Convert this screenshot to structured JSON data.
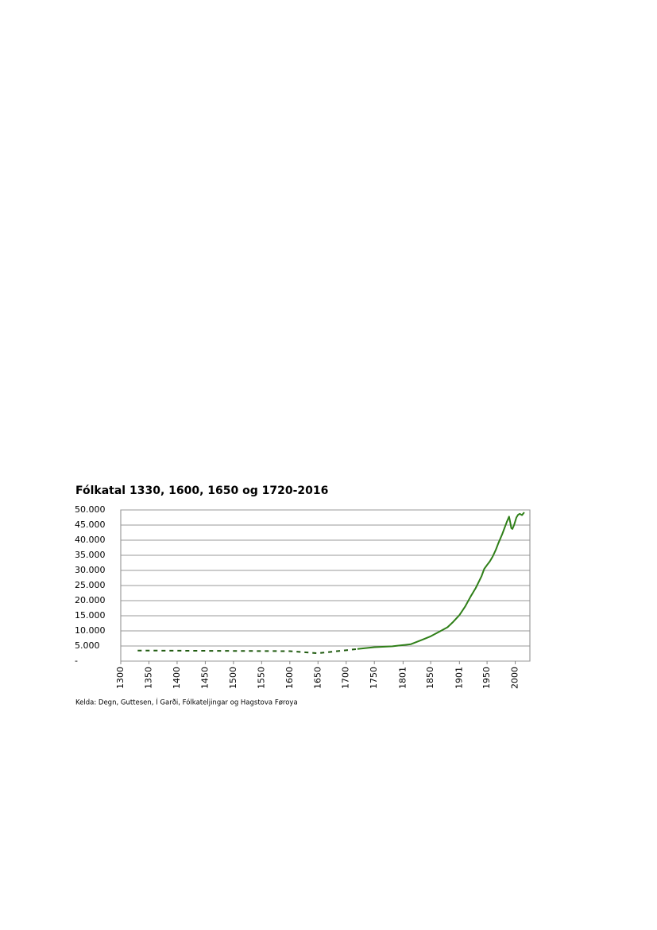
{
  "chart_data": {
    "type": "line",
    "title": "Fólkatal 1330, 1600, 1650 og 1720-2016",
    "source": "Kelda: Degn, Guttesen, Í Garði, Fólkateljingar og Hagstova Føroya",
    "xlim": [
      1300,
      2026
    ],
    "xticks": [
      1300,
      1350,
      1400,
      1450,
      1500,
      1550,
      1600,
      1650,
      1700,
      1750,
      1801,
      1850,
      1901,
      1950,
      2000
    ],
    "ylim": [
      0,
      50000
    ],
    "yticks": [
      {
        "value": 0,
        "label": "-"
      },
      {
        "value": 5000,
        "label": "5.000"
      },
      {
        "value": 10000,
        "label": "10.000"
      },
      {
        "value": 15000,
        "label": "15.000"
      },
      {
        "value": 20000,
        "label": "20.000"
      },
      {
        "value": 25000,
        "label": "25.000"
      },
      {
        "value": 30000,
        "label": "30.000"
      },
      {
        "value": 35000,
        "label": "35.000"
      },
      {
        "value": 40000,
        "label": "40.000"
      },
      {
        "value": 45000,
        "label": "45.000"
      },
      {
        "value": 50000,
        "label": "50.000"
      }
    ],
    "grid": true,
    "series": [
      {
        "color": "#1f5a0f",
        "dashed": true,
        "x": [
          1330,
          1600,
          1650,
          1720
        ],
        "values": [
          3500,
          3300,
          2600,
          4000
        ]
      },
      {
        "color": "#2f7f18",
        "dashed": false,
        "x": [
          1720,
          1750,
          1782,
          1801,
          1815,
          1834,
          1850,
          1870,
          1880,
          1890,
          1901,
          1911,
          1921,
          1930,
          1940,
          1945,
          1950,
          1955,
          1960,
          1966,
          1970,
          1977,
          1985,
          1989,
          1991,
          1993,
          1995,
          1998,
          2002,
          2005,
          2008,
          2012,
          2016
        ],
        "values": [
          4000,
          4600,
          4900,
          5300,
          5600,
          7000,
          8200,
          10200,
          11200,
          13000,
          15200,
          18000,
          21400,
          24200,
          28000,
          30500,
          31800,
          33000,
          34600,
          37000,
          39000,
          42000,
          46000,
          47800,
          46000,
          44000,
          43700,
          45000,
          47500,
          48400,
          48700,
          48300,
          49200
        ]
      }
    ]
  }
}
